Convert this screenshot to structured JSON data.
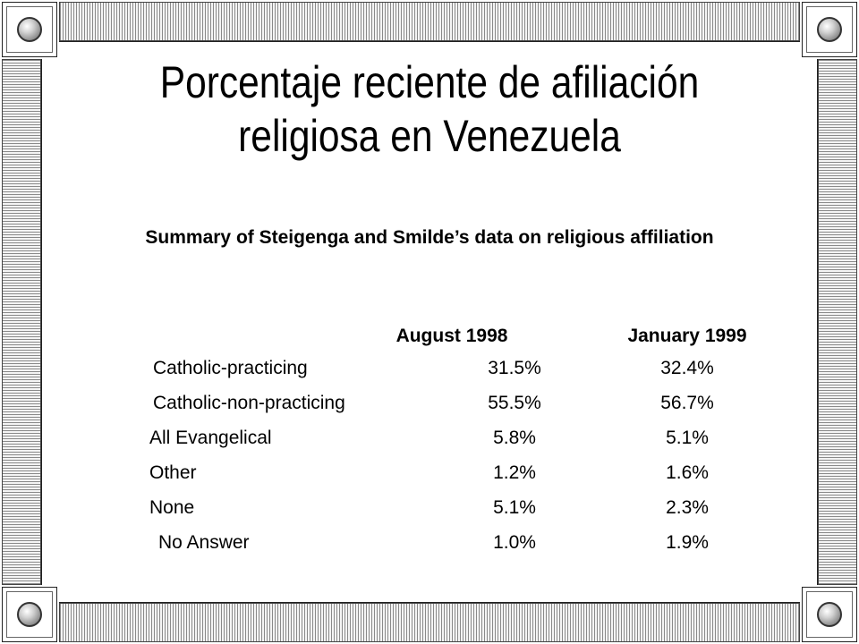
{
  "slide": {
    "title": "Porcentaje reciente de afiliación religiosa en Venezuela",
    "subtitle": "Summary of Steigenga and Smilde’s data on religious affiliation"
  },
  "table": {
    "columns": [
      "August 1998",
      "January 1999"
    ],
    "rows": [
      {
        "label": "Catholic-practicing",
        "aug1998": "31.5%",
        "jan1999": "32.4%"
      },
      {
        "label": "Catholic-non-practicing",
        "aug1998": "55.5%",
        "jan1999": "56.7%"
      },
      {
        "label": "All Evangelical",
        "aug1998": "5.8%",
        "jan1999": "5.1%"
      },
      {
        "label": "Other",
        "aug1998": "1.2%",
        "jan1999": "1.6%"
      },
      {
        "label": "None",
        "aug1998": "5.1%",
        "jan1999": "2.3%"
      },
      {
        "label": "No Answer",
        "aug1998": "1.0%",
        "jan1999": "1.9%"
      }
    ]
  },
  "colors": {
    "background": "#ffffff",
    "text": "#000000",
    "frame_hatch": "#8a8a8a"
  }
}
